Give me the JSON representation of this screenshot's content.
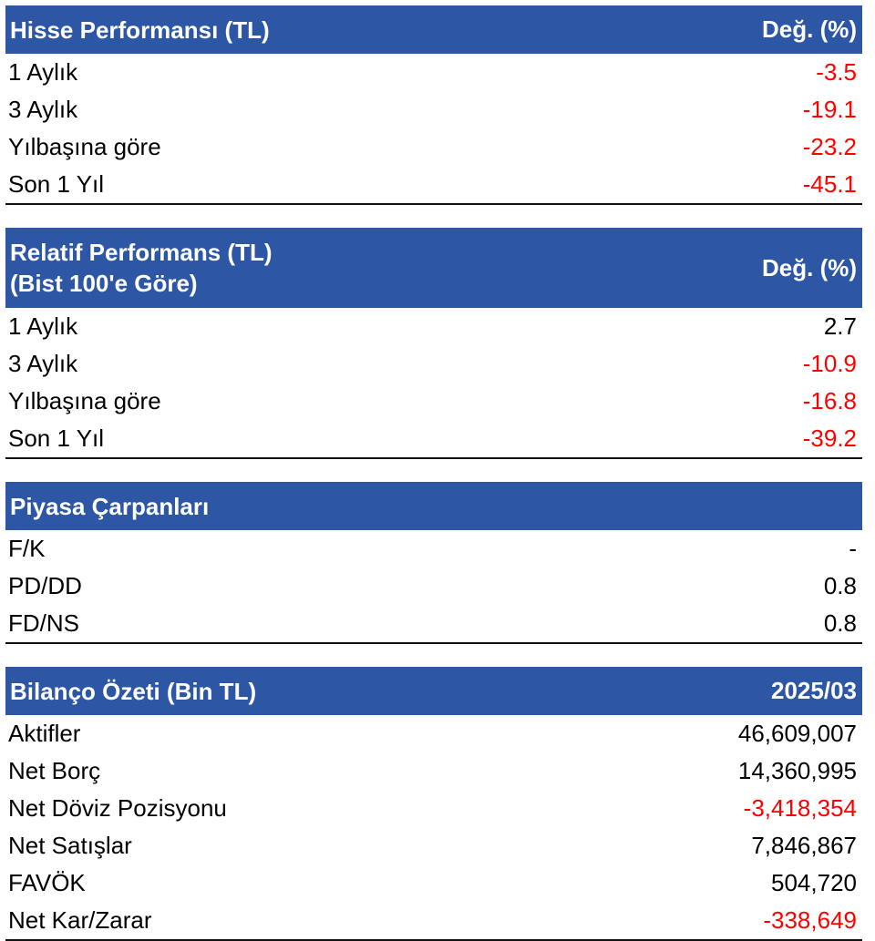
{
  "colors": {
    "header_bg": "#2d57a5",
    "negative": "#ff0000",
    "positive": "#000000"
  },
  "sections": [
    {
      "title_lines": [
        "Hisse Performansı (TL)"
      ],
      "column_label": "Değ. (%)",
      "rows": [
        {
          "label": "1 Aylık",
          "value": "-3.5",
          "negative": true
        },
        {
          "label": "3 Aylık",
          "value": "-19.1",
          "negative": true
        },
        {
          "label": "Yılbaşına göre",
          "value": "-23.2",
          "negative": true
        },
        {
          "label": "Son 1 Yıl",
          "value": "-45.1",
          "negative": true
        }
      ]
    },
    {
      "title_lines": [
        "Relatif Performans (TL)",
        "(Bist 100'e Göre)"
      ],
      "column_label": "Değ. (%)",
      "rows": [
        {
          "label": "1 Aylık",
          "value": "2.7",
          "negative": false
        },
        {
          "label": "3 Aylık",
          "value": "-10.9",
          "negative": true
        },
        {
          "label": "Yılbaşına göre",
          "value": "-16.8",
          "negative": true
        },
        {
          "label": "Son 1 Yıl",
          "value": "-39.2",
          "negative": true
        }
      ]
    },
    {
      "title_lines": [
        "Piyasa Çarpanları"
      ],
      "column_label": "",
      "rows": [
        {
          "label": "F/K",
          "value": "-",
          "negative": false
        },
        {
          "label": "PD/DD",
          "value": "0.8",
          "negative": false
        },
        {
          "label": "FD/NS",
          "value": "0.8",
          "negative": false
        }
      ]
    },
    {
      "title_lines": [
        "Bilanço Özeti (Bin TL)"
      ],
      "column_label": "2025/03",
      "rows": [
        {
          "label": "Aktifler",
          "value": "46,609,007",
          "negative": false
        },
        {
          "label": "Net Borç",
          "value": "14,360,995",
          "negative": false
        },
        {
          "label": "Net Döviz Pozisyonu",
          "value": "-3,418,354",
          "negative": true
        },
        {
          "label": "Net Satışlar",
          "value": "7,846,867",
          "negative": false
        },
        {
          "label": "FAVÖK",
          "value": "504,720",
          "negative": false
        },
        {
          "label": "Net Kar/Zarar",
          "value": "-338,649",
          "negative": true
        }
      ]
    }
  ]
}
